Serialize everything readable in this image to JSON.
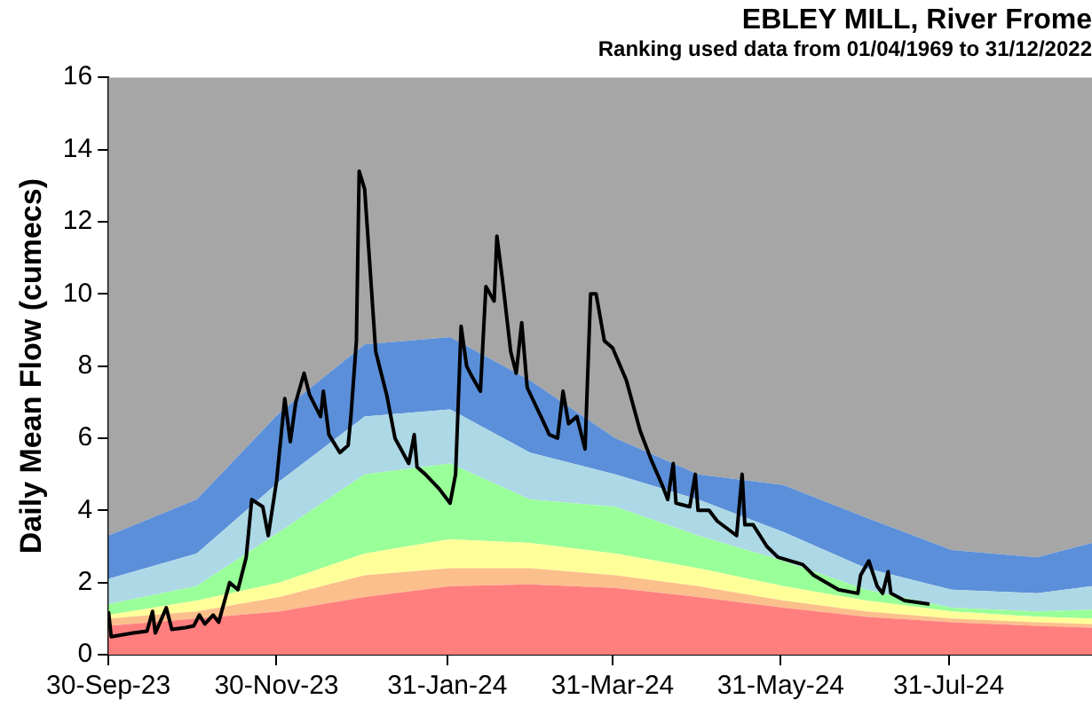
{
  "chart_data": {
    "type": "area",
    "title": "EBLEY MILL, River Frome",
    "subtitle": "Ranking used data from 01/04/1969 to 31/12/2022",
    "ylabel": "Daily Mean Flow (cumecs)",
    "x": [
      "2023-09-30",
      "2023-11-01",
      "2023-12-01",
      "2024-01-01",
      "2024-02-01",
      "2024-03-01",
      "2024-04-01",
      "2024-05-01",
      "2024-06-01",
      "2024-07-01",
      "2024-08-01",
      "2024-09-01",
      "2024-09-21"
    ],
    "stacked": true,
    "series": [
      {
        "color": "#ff7f7f",
        "values": [
          0.8,
          1.0,
          1.2,
          1.6,
          1.9,
          1.95,
          1.85,
          1.6,
          1.3,
          1.05,
          0.9,
          0.8,
          0.75
        ]
      },
      {
        "color": "#fbbf8c",
        "values": [
          0.2,
          0.2,
          0.4,
          0.6,
          0.5,
          0.45,
          0.35,
          0.3,
          0.2,
          0.15,
          0.1,
          0.1,
          0.1
        ]
      },
      {
        "color": "#ffff99",
        "values": [
          0.1,
          0.3,
          0.4,
          0.6,
          0.8,
          0.7,
          0.6,
          0.5,
          0.4,
          0.3,
          0.2,
          0.15,
          0.15
        ]
      },
      {
        "color": "#99ff99",
        "values": [
          0.3,
          0.4,
          1.4,
          2.2,
          2.1,
          1.2,
          1.3,
          0.9,
          0.7,
          0.3,
          0.1,
          0.15,
          0.25
        ]
      },
      {
        "color": "#add8e6",
        "values": [
          0.7,
          0.9,
          1.4,
          1.6,
          1.5,
          1.3,
          0.9,
          1.0,
          0.8,
          0.6,
          0.5,
          0.5,
          0.65
        ]
      },
      {
        "color": "#5b8fd9",
        "values": [
          1.2,
          1.5,
          1.9,
          2.0,
          2.0,
          2.0,
          1.0,
          0.7,
          1.3,
          1.4,
          1.1,
          1.0,
          1.2
        ]
      },
      {
        "color": "#a6a6a6",
        "values": [
          12.7,
          11.7,
          9.3,
          7.4,
          7.2,
          8.4,
          10.0,
          11.0,
          11.3,
          12.2,
          13.1,
          13.3,
          12.9
        ]
      },
      {
        "type": "line",
        "color": "#000000",
        "x": [
          "2023-09-30",
          "2023-10-01",
          "2023-10-09",
          "2023-10-14",
          "2023-10-16",
          "2023-10-17",
          "2023-10-21",
          "2023-10-23",
          "2023-10-28",
          "2023-10-31",
          "2023-11-02",
          "2023-11-04",
          "2023-11-07",
          "2023-11-09",
          "2023-11-13",
          "2023-11-16",
          "2023-11-19",
          "2023-11-21",
          "2023-11-25",
          "2023-11-27",
          "2023-11-30",
          "2023-12-03",
          "2023-12-05",
          "2023-12-07",
          "2023-12-10",
          "2023-12-12",
          "2023-12-16",
          "2023-12-17",
          "2023-12-19",
          "2023-12-23",
          "2023-12-26",
          "2023-12-27",
          "2023-12-29",
          "2023-12-30",
          "2024-01-01",
          "2024-01-05",
          "2024-01-09",
          "2024-01-12",
          "2024-01-17",
          "2024-01-19",
          "2024-01-20",
          "2024-01-23",
          "2024-01-28",
          "2024-02-01",
          "2024-02-03",
          "2024-02-05",
          "2024-02-07",
          "2024-02-09",
          "2024-02-12",
          "2024-02-14",
          "2024-02-17",
          "2024-02-18",
          "2024-02-20",
          "2024-02-23",
          "2024-02-25",
          "2024-02-27",
          "2024-02-29",
          "2024-03-05",
          "2024-03-08",
          "2024-03-11",
          "2024-03-13",
          "2024-03-15",
          "2024-03-18",
          "2024-03-21",
          "2024-03-23",
          "2024-03-25",
          "2024-03-28",
          "2024-03-31",
          "2024-04-05",
          "2024-04-10",
          "2024-04-14",
          "2024-04-18",
          "2024-04-20",
          "2024-04-22",
          "2024-04-23",
          "2024-04-28",
          "2024-04-30",
          "2024-05-01",
          "2024-05-05",
          "2024-05-08",
          "2024-05-15",
          "2024-05-17",
          "2024-05-18",
          "2024-05-21",
          "2024-05-26",
          "2024-05-30",
          "2024-06-08",
          "2024-06-12",
          "2024-06-21",
          "2024-06-28",
          "2024-06-29",
          "2024-07-02",
          "2024-07-05",
          "2024-07-07",
          "2024-07-09",
          "2024-07-10",
          "2024-07-15",
          "2024-07-24"
        ],
        "values": [
          1.2,
          0.5,
          0.6,
          0.65,
          1.2,
          0.6,
          1.3,
          0.7,
          0.75,
          0.8,
          1.1,
          0.85,
          1.1,
          0.9,
          2.0,
          1.8,
          2.7,
          4.3,
          4.1,
          3.3,
          4.8,
          7.1,
          5.9,
          7.0,
          7.8,
          7.2,
          6.6,
          7.3,
          6.1,
          5.6,
          5.8,
          6.6,
          8.7,
          13.4,
          12.9,
          8.4,
          7.2,
          6.0,
          5.3,
          6.1,
          5.2,
          5.0,
          4.6,
          4.2,
          5.0,
          9.1,
          8.0,
          7.7,
          7.3,
          10.2,
          9.8,
          11.6,
          10.4,
          8.4,
          7.8,
          9.2,
          7.4,
          6.6,
          6.1,
          6.0,
          7.3,
          6.4,
          6.6,
          5.7,
          10.0,
          10.0,
          8.7,
          8.5,
          7.6,
          6.2,
          5.4,
          4.7,
          4.3,
          5.3,
          4.2,
          4.1,
          5.0,
          4.0,
          4.0,
          3.7,
          3.3,
          5.0,
          3.6,
          3.6,
          3.0,
          2.7,
          2.5,
          2.2,
          1.8,
          1.7,
          2.2,
          2.6,
          1.9,
          1.7,
          2.3,
          1.7,
          1.5,
          1.4
        ]
      }
    ],
    "xlim": [
      "2023-09-30",
      "2024-09-21"
    ],
    "xticks": [
      {
        "value": "2023-09-30",
        "label": "30-Sep-23"
      },
      {
        "value": "2023-11-30",
        "label": "30-Nov-23"
      },
      {
        "value": "2024-01-31",
        "label": "31-Jan-24"
      },
      {
        "value": "2024-03-31",
        "label": "31-Mar-24"
      },
      {
        "value": "2024-05-31",
        "label": "31-May-24"
      },
      {
        "value": "2024-07-31",
        "label": "31-Jul-24"
      }
    ],
    "ylim": [
      0,
      16
    ],
    "yticks": [
      0,
      2,
      4,
      6,
      8,
      10,
      12,
      14,
      16
    ],
    "grid": false,
    "legend": false,
    "marker": "none",
    "line_style": "solid"
  }
}
